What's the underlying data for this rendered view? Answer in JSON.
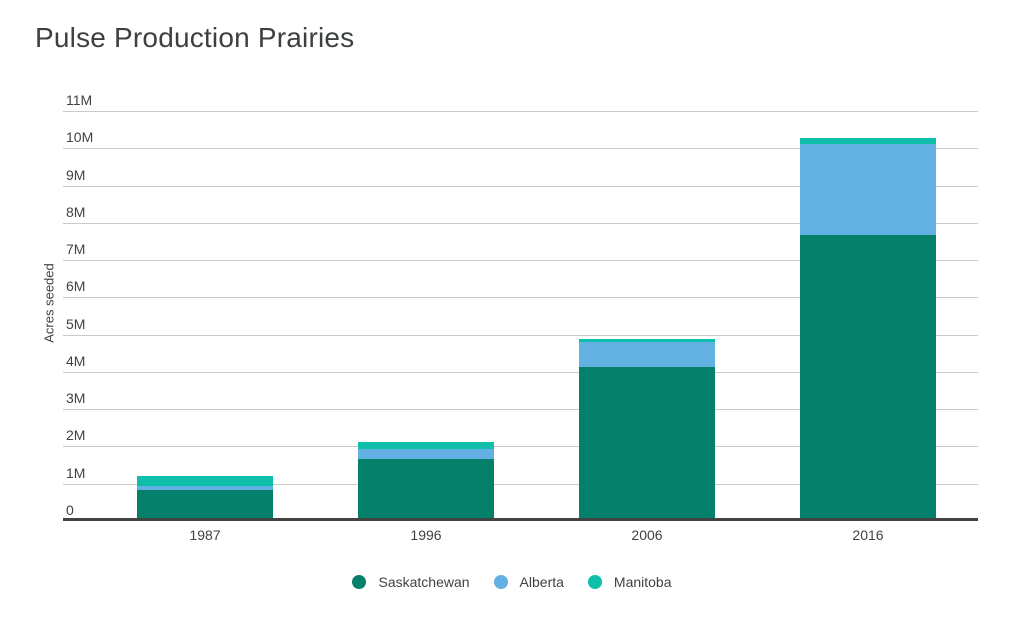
{
  "title": "Pulse Production Prairies",
  "colors": {
    "background": "#ffffff",
    "title_text": "#3c4043",
    "axis_text": "#424242",
    "gridline": "#cbcbcb",
    "baseline": "#424242",
    "saskatchewan": "#05806b",
    "alberta": "#63b1e2",
    "manitoba": "#0fbfa9"
  },
  "chart_data": {
    "type": "bar",
    "stacked": true,
    "title": "Pulse Production Prairies",
    "xlabel": "",
    "ylabel": "Acres seeded",
    "y_unit": "millions of acres",
    "ylim": [
      0,
      11
    ],
    "grid": true,
    "legend_position": "bottom",
    "categories": [
      "1987",
      "1996",
      "2006",
      "2016"
    ],
    "series": [
      {
        "name": "Saskatchewan",
        "color": "#05806b",
        "values": [
          0.8,
          1.65,
          4.1,
          7.65
        ]
      },
      {
        "name": "Alberta",
        "color": "#63b1e2",
        "values": [
          0.1,
          0.25,
          0.68,
          2.45
        ]
      },
      {
        "name": "Manitoba",
        "color": "#0fbfa9",
        "values": [
          0.27,
          0.2,
          0.07,
          0.15
        ]
      }
    ],
    "totals": [
      1.17,
      2.1,
      4.85,
      10.25
    ],
    "y_ticks": [
      {
        "value": 0,
        "label": "0"
      },
      {
        "value": 1,
        "label": "1M"
      },
      {
        "value": 2,
        "label": "2M"
      },
      {
        "value": 3,
        "label": "3M"
      },
      {
        "value": 4,
        "label": "4M"
      },
      {
        "value": 5,
        "label": "5M"
      },
      {
        "value": 6,
        "label": "6M"
      },
      {
        "value": 7,
        "label": "7M"
      },
      {
        "value": 8,
        "label": "8M"
      },
      {
        "value": 9,
        "label": "9M"
      },
      {
        "value": 10,
        "label": "10M"
      },
      {
        "value": 11,
        "label": "11M"
      }
    ]
  }
}
